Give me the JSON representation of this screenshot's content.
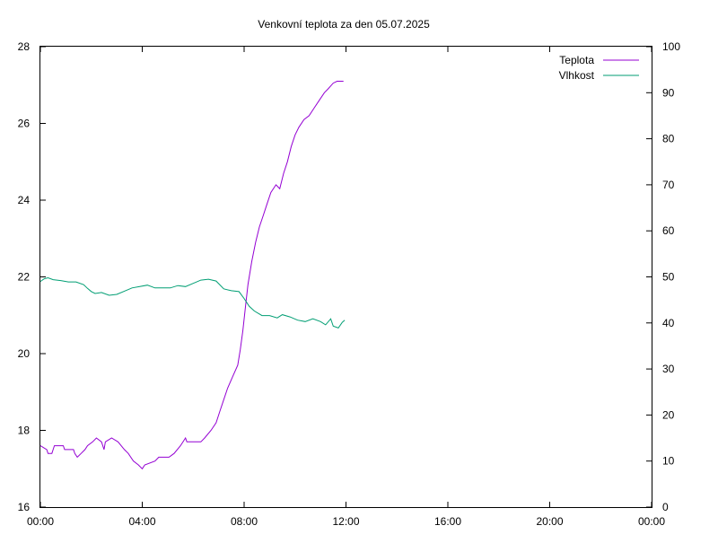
{
  "chart_data": {
    "type": "line",
    "title": "Venkovní teplota za den 05.07.2025",
    "xlabel": "",
    "ylabel": "",
    "y2label": "",
    "x_ticks": [
      "00:00",
      "04:00",
      "08:00",
      "12:00",
      "16:00",
      "20:00",
      "00:00"
    ],
    "x_range_hours": [
      0,
      24
    ],
    "ylim": [
      16,
      28
    ],
    "y_ticks": [
      16,
      18,
      20,
      22,
      24,
      26,
      28
    ],
    "y2lim": [
      0,
      100
    ],
    "y2_ticks": [
      0,
      10,
      20,
      30,
      40,
      50,
      60,
      70,
      80,
      90,
      100
    ],
    "grid": false,
    "legend_position": "top-right",
    "series": [
      {
        "name": "Teplota",
        "axis": "left",
        "color": "#9400d3",
        "points": [
          [
            0.0,
            17.6
          ],
          [
            0.25,
            17.5
          ],
          [
            0.3,
            17.4
          ],
          [
            0.45,
            17.4
          ],
          [
            0.5,
            17.5
          ],
          [
            0.55,
            17.6
          ],
          [
            0.9,
            17.6
          ],
          [
            0.95,
            17.5
          ],
          [
            1.3,
            17.5
          ],
          [
            1.35,
            17.4
          ],
          [
            1.45,
            17.3
          ],
          [
            1.6,
            17.4
          ],
          [
            1.75,
            17.5
          ],
          [
            1.85,
            17.6
          ],
          [
            2.05,
            17.7
          ],
          [
            2.2,
            17.8
          ],
          [
            2.4,
            17.7
          ],
          [
            2.5,
            17.5
          ],
          [
            2.55,
            17.7
          ],
          [
            2.8,
            17.8
          ],
          [
            3.05,
            17.7
          ],
          [
            3.3,
            17.5
          ],
          [
            3.45,
            17.4
          ],
          [
            3.65,
            17.2
          ],
          [
            3.85,
            17.1
          ],
          [
            4.0,
            17.0
          ],
          [
            4.1,
            17.1
          ],
          [
            4.5,
            17.2
          ],
          [
            4.65,
            17.3
          ],
          [
            5.05,
            17.3
          ],
          [
            5.25,
            17.4
          ],
          [
            5.5,
            17.6
          ],
          [
            5.7,
            17.8
          ],
          [
            5.75,
            17.7
          ],
          [
            6.3,
            17.7
          ],
          [
            6.45,
            17.8
          ],
          [
            6.7,
            18.0
          ],
          [
            6.9,
            18.2
          ],
          [
            7.05,
            18.5
          ],
          [
            7.2,
            18.8
          ],
          [
            7.35,
            19.1
          ],
          [
            7.55,
            19.4
          ],
          [
            7.75,
            19.7
          ],
          [
            7.85,
            20.1
          ],
          [
            7.95,
            20.6
          ],
          [
            8.05,
            21.2
          ],
          [
            8.15,
            21.8
          ],
          [
            8.3,
            22.4
          ],
          [
            8.45,
            22.9
          ],
          [
            8.6,
            23.3
          ],
          [
            8.75,
            23.6
          ],
          [
            8.9,
            23.9
          ],
          [
            9.05,
            24.2
          ],
          [
            9.25,
            24.4
          ],
          [
            9.4,
            24.3
          ],
          [
            9.55,
            24.7
          ],
          [
            9.7,
            25.0
          ],
          [
            9.85,
            25.4
          ],
          [
            10.0,
            25.7
          ],
          [
            10.15,
            25.9
          ],
          [
            10.35,
            26.1
          ],
          [
            10.55,
            26.2
          ],
          [
            10.75,
            26.4
          ],
          [
            10.95,
            26.6
          ],
          [
            11.15,
            26.8
          ],
          [
            11.3,
            26.9
          ],
          [
            11.5,
            27.05
          ],
          [
            11.65,
            27.1
          ],
          [
            11.9,
            27.1
          ]
        ]
      },
      {
        "name": "Vlhkost",
        "axis": "right",
        "color": "#009e73",
        "points": [
          [
            0.0,
            49.0
          ],
          [
            0.15,
            49.6
          ],
          [
            0.3,
            49.8
          ],
          [
            0.5,
            49.4
          ],
          [
            0.8,
            49.2
          ],
          [
            1.1,
            48.9
          ],
          [
            1.4,
            48.9
          ],
          [
            1.7,
            48.3
          ],
          [
            1.85,
            47.5
          ],
          [
            2.0,
            46.8
          ],
          [
            2.15,
            46.4
          ],
          [
            2.4,
            46.6
          ],
          [
            2.7,
            46.0
          ],
          [
            3.0,
            46.2
          ],
          [
            3.3,
            46.9
          ],
          [
            3.6,
            47.6
          ],
          [
            3.9,
            47.9
          ],
          [
            4.2,
            48.2
          ],
          [
            4.5,
            47.6
          ],
          [
            4.8,
            47.6
          ],
          [
            5.1,
            47.6
          ],
          [
            5.4,
            48.1
          ],
          [
            5.7,
            47.9
          ],
          [
            6.0,
            48.6
          ],
          [
            6.3,
            49.3
          ],
          [
            6.6,
            49.5
          ],
          [
            6.9,
            49.1
          ],
          [
            7.2,
            47.4
          ],
          [
            7.5,
            47.0
          ],
          [
            7.8,
            46.8
          ],
          [
            8.0,
            45.3
          ],
          [
            8.2,
            43.6
          ],
          [
            8.4,
            42.6
          ],
          [
            8.7,
            41.6
          ],
          [
            9.0,
            41.6
          ],
          [
            9.3,
            41.1
          ],
          [
            9.5,
            41.8
          ],
          [
            9.8,
            41.3
          ],
          [
            10.1,
            40.6
          ],
          [
            10.4,
            40.3
          ],
          [
            10.7,
            40.9
          ],
          [
            11.0,
            40.3
          ],
          [
            11.2,
            39.6
          ],
          [
            11.4,
            40.9
          ],
          [
            11.5,
            39.3
          ],
          [
            11.7,
            38.9
          ],
          [
            11.85,
            40.1
          ],
          [
            11.95,
            40.6
          ]
        ]
      }
    ]
  }
}
